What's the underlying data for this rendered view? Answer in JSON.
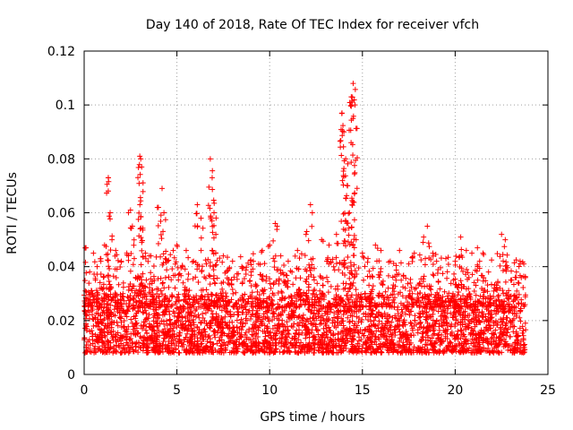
{
  "chart_data": {
    "type": "scatter",
    "title": "Day 140 of 2018, Rate Of TEC Index for receiver vfch",
    "xlabel": "GPS time / hours",
    "ylabel": "ROTI / TECUs",
    "xlim": [
      0,
      25
    ],
    "ylim": [
      0,
      0.12
    ],
    "xticks": [
      0,
      5,
      10,
      15,
      20,
      25
    ],
    "xtick_labels": [
      "0",
      "5",
      "10",
      "15",
      "20",
      "25"
    ],
    "yticks": [
      0,
      0.02,
      0.04,
      0.06,
      0.08,
      0.1,
      0.12
    ],
    "ytick_labels": [
      "0",
      "0.02",
      "0.04",
      "0.06",
      "0.08",
      "0.1",
      "0.12"
    ],
    "grid": true,
    "marker": "+",
    "color": "#ff0000",
    "x_range_data": [
      0.0,
      23.8
    ],
    "baseline_band": [
      0.008,
      0.03
    ],
    "series": [
      {
        "name": "ROTI",
        "x": [
          0.1,
          0.3,
          0.5,
          0.7,
          0.9,
          1.1,
          1.3,
          1.4,
          1.5,
          1.7,
          2.0,
          2.3,
          2.5,
          2.6,
          2.7,
          3.0,
          3.05,
          3.1,
          3.3,
          3.6,
          4.0,
          4.2,
          4.3,
          4.5,
          4.8,
          5.0,
          5.3,
          5.5,
          5.9,
          6.1,
          6.3,
          6.8,
          6.9,
          7.0,
          7.1,
          7.5,
          8.0,
          8.5,
          9.0,
          9.4,
          9.6,
          10.0,
          10.3,
          10.4,
          10.6,
          11.0,
          11.5,
          12.0,
          12.2,
          12.3,
          12.8,
          13.2,
          13.6,
          13.9,
          14.0,
          14.1,
          14.2,
          14.3,
          14.4,
          14.5,
          14.6,
          15.0,
          15.3,
          15.7,
          16.0,
          16.5,
          17.0,
          17.5,
          17.8,
          18.3,
          18.5,
          18.8,
          19.0,
          19.5,
          20.0,
          20.3,
          20.6,
          20.9,
          21.2,
          21.5,
          21.8,
          22.3,
          22.5,
          22.7,
          23.0,
          23.3,
          23.5,
          23.7
        ],
        "y": [
          0.047,
          0.038,
          0.045,
          0.04,
          0.042,
          0.048,
          0.073,
          0.06,
          0.05,
          0.046,
          0.042,
          0.045,
          0.061,
          0.055,
          0.043,
          0.081,
          0.08,
          0.077,
          0.045,
          0.044,
          0.062,
          0.069,
          0.06,
          0.042,
          0.046,
          0.048,
          0.04,
          0.046,
          0.042,
          0.063,
          0.058,
          0.08,
          0.073,
          0.06,
          0.052,
          0.044,
          0.042,
          0.04,
          0.038,
          0.041,
          0.046,
          0.048,
          0.056,
          0.055,
          0.044,
          0.042,
          0.046,
          0.053,
          0.063,
          0.06,
          0.05,
          0.048,
          0.052,
          0.097,
          0.09,
          0.08,
          0.07,
          0.06,
          0.103,
          0.108,
          0.1,
          0.045,
          0.043,
          0.048,
          0.046,
          0.042,
          0.046,
          0.041,
          0.045,
          0.051,
          0.055,
          0.045,
          0.042,
          0.043,
          0.042,
          0.051,
          0.046,
          0.045,
          0.047,
          0.045,
          0.038,
          0.034,
          0.052,
          0.05,
          0.035,
          0.038,
          0.042,
          0.041
        ]
      }
    ]
  }
}
